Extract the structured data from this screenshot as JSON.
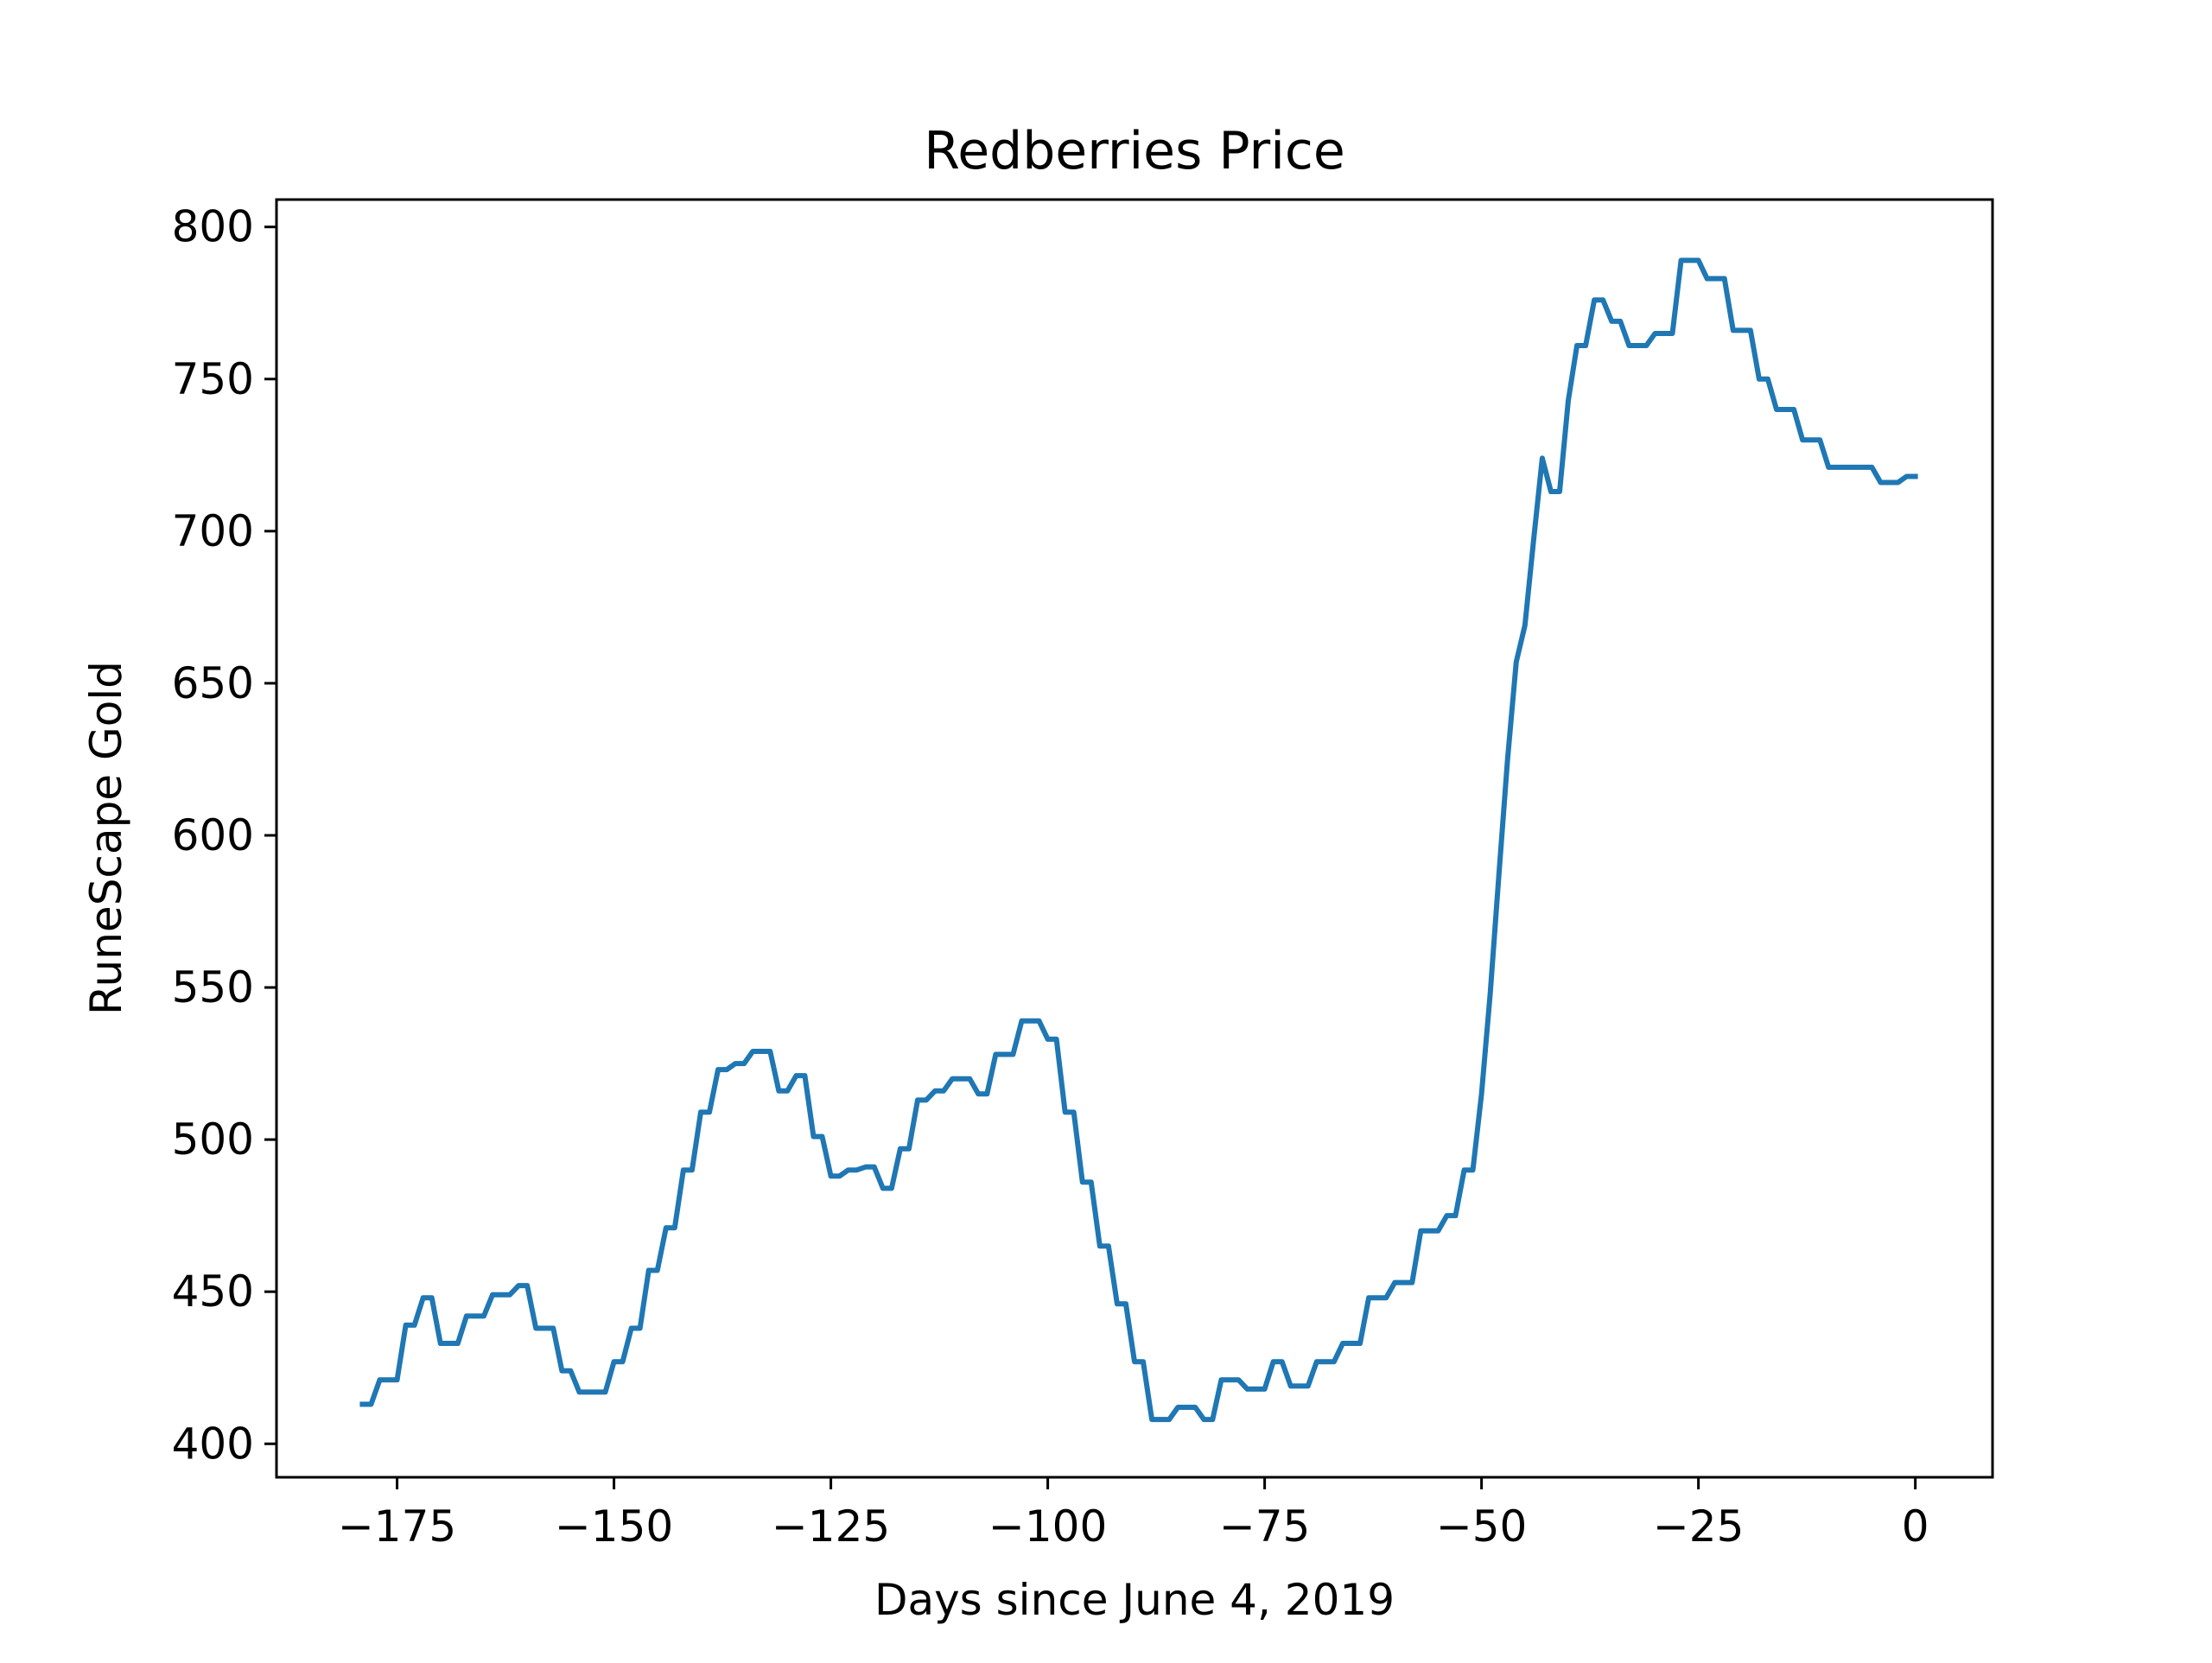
{
  "chart_data": {
    "type": "line",
    "title": "Redberries Price",
    "xlabel": "Days since June 4, 2019",
    "ylabel": "RuneScape Gold",
    "xlim": [
      -188.9,
      8.9
    ],
    "ylim": [
      389.0,
      809.0
    ],
    "xticks": [
      -175,
      -150,
      -125,
      -100,
      -75,
      -50,
      -25,
      0
    ],
    "xtick_labels": [
      "−175",
      "−150",
      "−125",
      "−100",
      "−75",
      "−50",
      "−25",
      "0"
    ],
    "yticks": [
      400,
      450,
      500,
      550,
      600,
      650,
      700,
      750,
      800
    ],
    "ytick_labels": [
      "400",
      "450",
      "500",
      "550",
      "600",
      "650",
      "700",
      "750",
      "800"
    ],
    "grid": false,
    "series": [
      {
        "name": "Redberries",
        "color": "#1f77b4",
        "x": [
          -179,
          -178,
          -177,
          -176,
          -175,
          -174,
          -173,
          -172,
          -171,
          -170,
          -169,
          -168,
          -167,
          -166,
          -165,
          -164,
          -163,
          -162,
          -161,
          -160,
          -159,
          -158,
          -157,
          -156,
          -155,
          -154,
          -153,
          -152,
          -151,
          -150,
          -149,
          -148,
          -147,
          -146,
          -145,
          -144,
          -143,
          -142,
          -141,
          -140,
          -139,
          -138,
          -137,
          -136,
          -135,
          -134,
          -133,
          -132,
          -131,
          -130,
          -129,
          -128,
          -127,
          -126,
          -125,
          -124,
          -123,
          -122,
          -121,
          -120,
          -119,
          -118,
          -117,
          -116,
          -115,
          -114,
          -113,
          -112,
          -111,
          -110,
          -109,
          -108,
          -107,
          -106,
          -105,
          -104,
          -103,
          -102,
          -101,
          -100,
          -99,
          -98,
          -97,
          -96,
          -95,
          -94,
          -93,
          -92,
          -91,
          -90,
          -89,
          -88,
          -87,
          -86,
          -85,
          -84,
          -83,
          -82,
          -81,
          -80,
          -79,
          -78,
          -77,
          -76,
          -75,
          -74,
          -73,
          -72,
          -71,
          -70,
          -69,
          -68,
          -67,
          -66,
          -65,
          -64,
          -63,
          -62,
          -61,
          -60,
          -59,
          -58,
          -57,
          -56,
          -55,
          -54,
          -53,
          -52,
          -51,
          -50,
          -49,
          -48,
          -47,
          -46,
          -45,
          -44,
          -43,
          -42,
          -41,
          -40,
          -39,
          -38,
          -37,
          -36,
          -35,
          -34,
          -33,
          -32,
          -31,
          -30,
          -29,
          -28,
          -27,
          -26,
          -25,
          -24,
          -23,
          -22,
          -21,
          -20,
          -19,
          -18,
          -17,
          -16,
          -15,
          -14,
          -13,
          -12,
          -11,
          -10,
          -9,
          -8,
          -7,
          -6,
          -5,
          -4,
          -3,
          -2,
          -1,
          0
        ],
        "y": [
          413,
          413,
          421,
          421,
          421,
          439,
          439,
          448,
          448,
          433,
          433,
          433,
          442,
          442,
          442,
          449,
          449,
          449,
          452,
          452,
          438,
          438,
          438,
          424,
          424,
          417,
          417,
          417,
          417,
          427,
          427,
          438,
          438,
          457,
          457,
          471,
          471,
          490,
          490,
          509,
          509,
          523,
          523,
          525,
          525,
          529,
          529,
          529,
          516,
          516,
          521,
          521,
          501,
          501,
          488,
          488,
          490,
          490,
          491,
          491,
          484,
          484,
          497,
          497,
          513,
          513,
          516,
          516,
          520,
          520,
          520,
          515,
          515,
          528,
          528,
          528,
          539,
          539,
          539,
          533,
          533,
          509,
          509,
          486,
          486,
          465,
          465,
          446,
          446,
          427,
          427,
          408,
          408,
          408,
          412,
          412,
          412,
          408,
          408,
          421,
          421,
          421,
          418,
          418,
          418,
          427,
          427,
          419,
          419,
          419,
          427,
          427,
          427,
          433,
          433,
          433,
          448,
          448,
          448,
          453,
          453,
          453,
          470,
          470,
          470,
          475,
          475,
          490,
          490,
          515,
          548,
          587,
          625,
          657,
          669,
          697,
          724,
          713,
          713,
          743,
          761,
          761,
          776,
          776,
          769,
          769,
          761,
          761,
          761,
          765,
          765,
          765,
          789,
          789,
          789,
          783,
          783,
          783,
          766,
          766,
          766,
          750,
          750,
          740,
          740,
          740,
          730,
          730,
          730,
          721,
          721,
          721,
          721,
          721,
          721,
          716,
          716,
          716,
          718,
          718
        ]
      }
    ]
  }
}
